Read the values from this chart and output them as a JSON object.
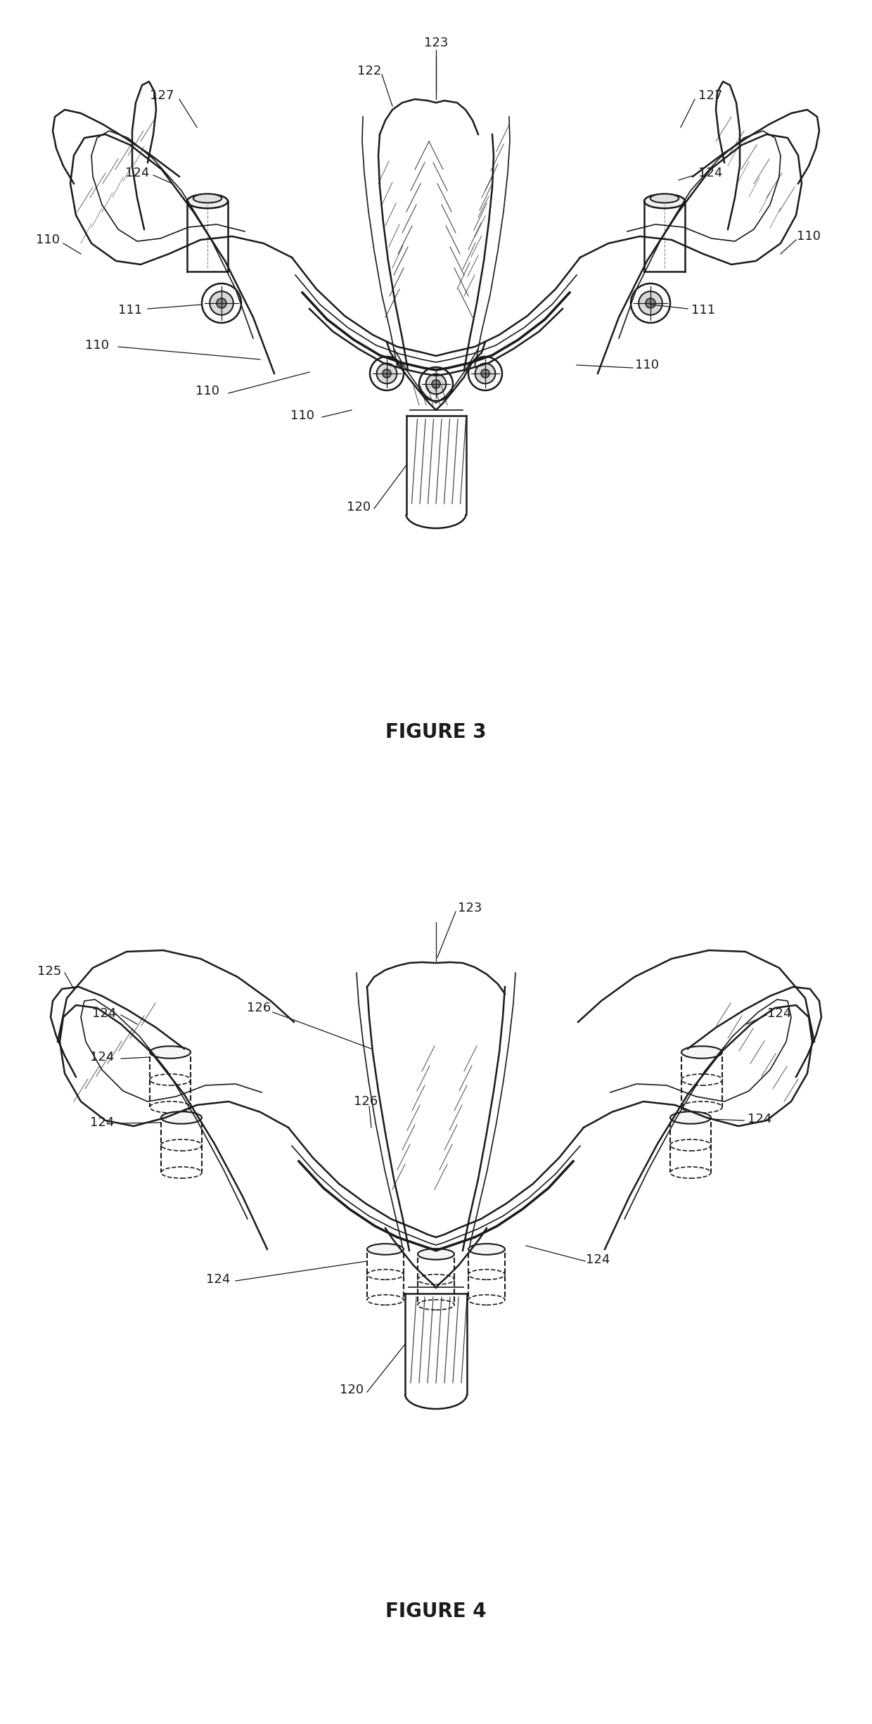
{
  "fig_width": 12.4,
  "fig_height": 24.51,
  "background_color": "#ffffff",
  "line_color": "#1a1a1a",
  "fig3_title": "FIGURE 3",
  "fig4_title": "FIGURE 4",
  "title_fontsize": 20,
  "label_fontsize": 13
}
